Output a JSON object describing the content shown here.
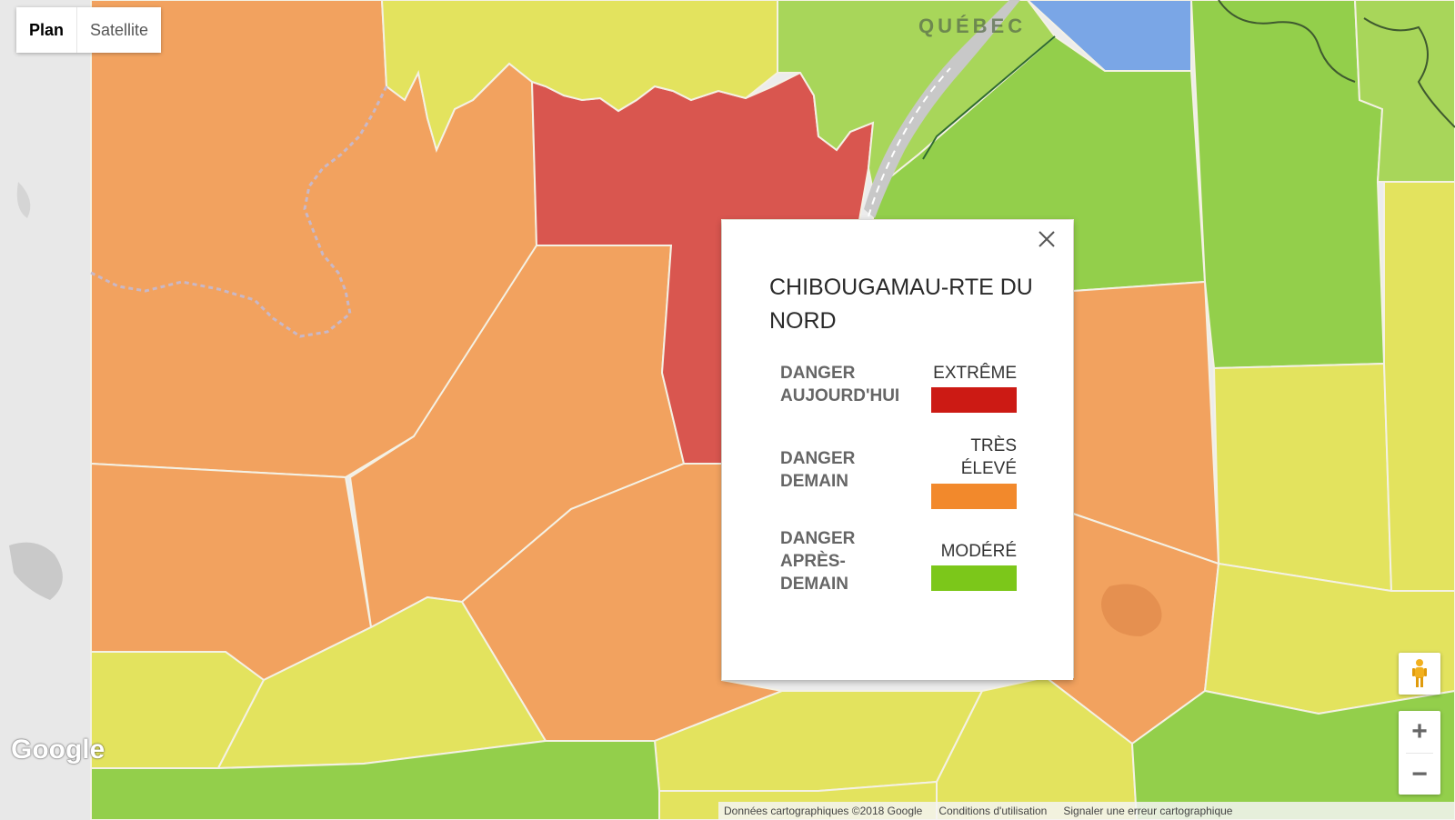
{
  "map_type_control": {
    "plan_label": "Plan",
    "satellite_label": "Satellite"
  },
  "map": {
    "province_label": "QUÉBEC",
    "google_logo": "Google",
    "attribution": [
      "Données cartographiques ©2018 Google",
      "Conditions d'utilisation",
      "Signaler une erreur cartographique"
    ]
  },
  "controls": {
    "zoom_in": "+",
    "zoom_out": "−"
  },
  "popup": {
    "title": "CHIBOUGAMAU-RTE DU NORD",
    "rows": [
      {
        "label": "DANGER AUJOURD'HUI",
        "level": "EXTRÊME",
        "color": "#cc1a14"
      },
      {
        "label": "DANGER DEMAIN",
        "level": "TRÈS ÉLEVÉ",
        "color": "#f2892c"
      },
      {
        "label": "DANGER APRÈS-DEMAIN",
        "level": "MODÉRÉ",
        "color": "#7cc71a"
      }
    ]
  },
  "colors": {
    "extreme": "#d9574f",
    "tres_eleve": "#f2a262",
    "eleve": "#f5a05e",
    "modere_jaune": "#e2e25f",
    "modere_vert": "#a9d65a",
    "bas": "#93cf4b",
    "eau": "#7aa7e5",
    "fond": "#e9e9e9"
  }
}
